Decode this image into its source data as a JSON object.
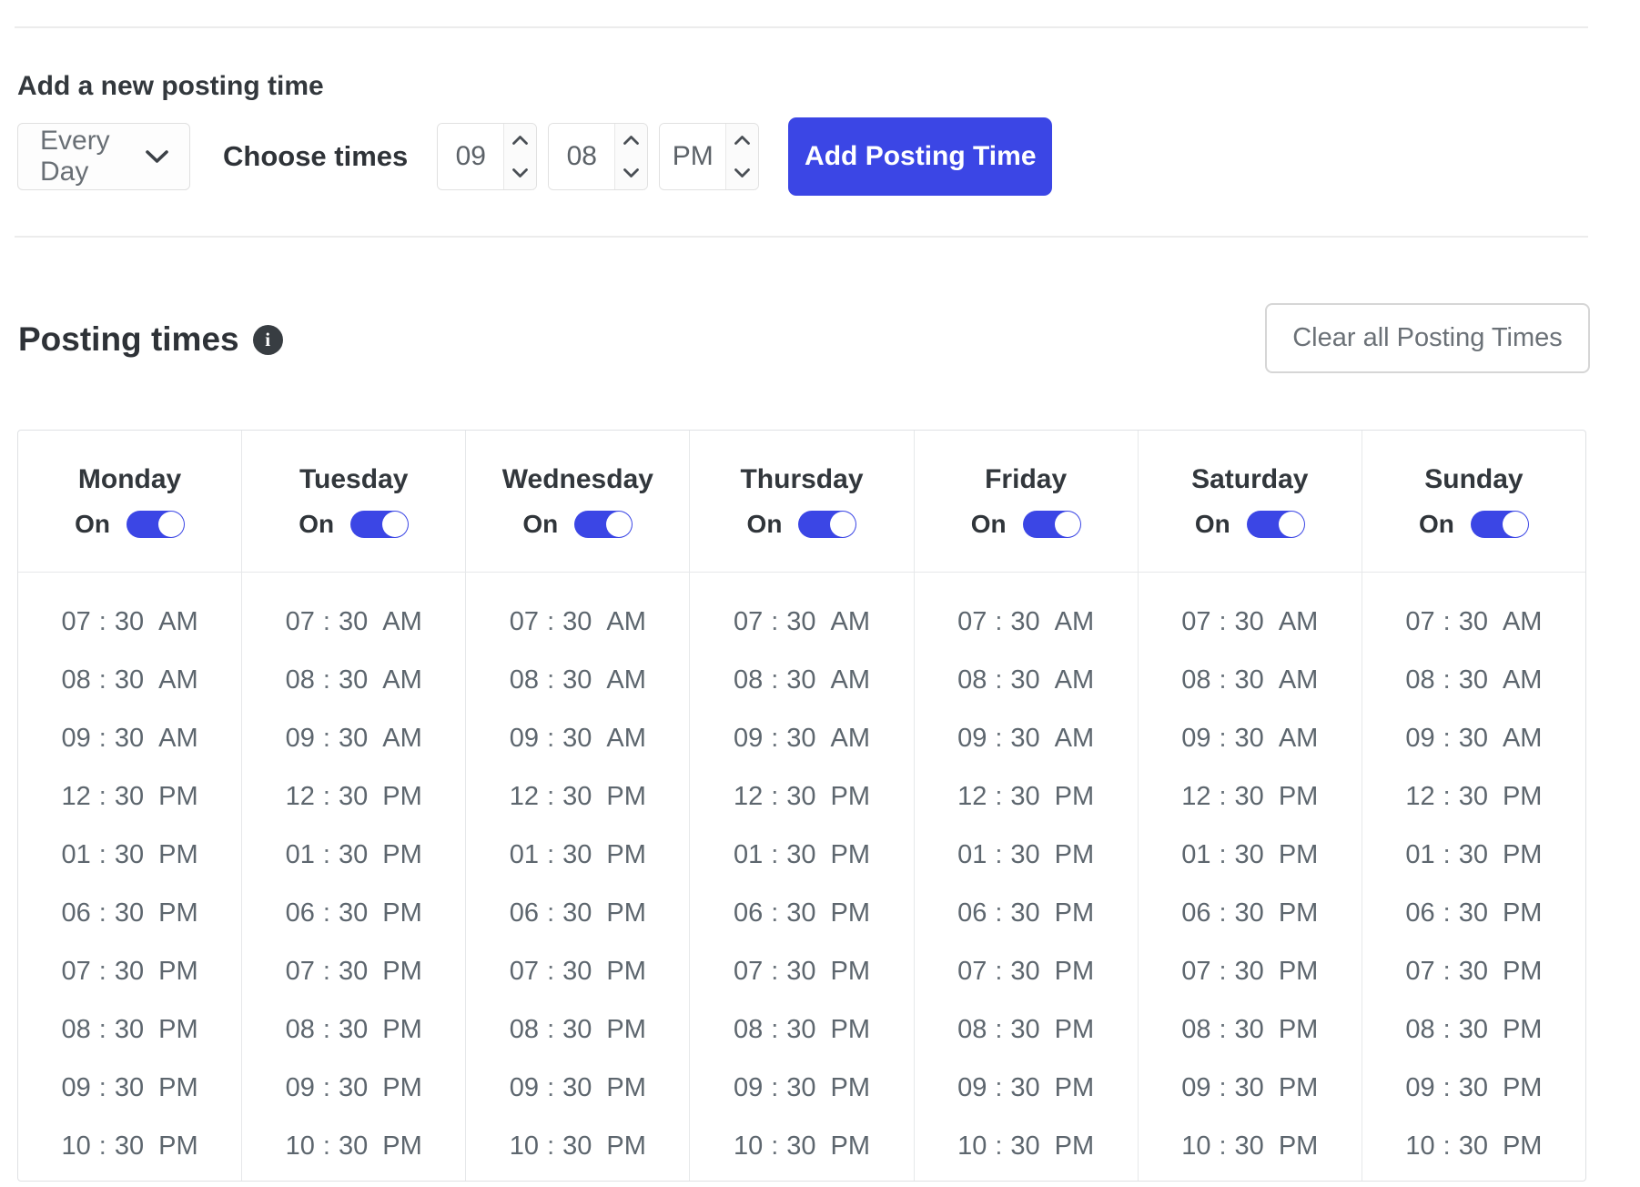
{
  "add_section": {
    "title": "Add a new posting time",
    "day_select": {
      "value": "Every Day"
    },
    "choose_times_label": "Choose times",
    "hour_input": {
      "value": "09"
    },
    "minute_input": {
      "value": "08"
    },
    "period_input": {
      "value": "PM"
    },
    "submit_label": "Add Posting Time"
  },
  "posting_times": {
    "title": "Posting times",
    "info_icon_glyph": "i",
    "clear_button_label": "Clear all Posting Times"
  },
  "schedule": {
    "toggle_label": "On",
    "days": [
      {
        "label": "Monday",
        "enabled": true,
        "times": [
          "07:30 AM",
          "08:30 AM",
          "09:30 AM",
          "12:30 PM",
          "01:30 PM",
          "06:30 PM",
          "07:30 PM",
          "08:30 PM",
          "09:30 PM",
          "10:30 PM"
        ]
      },
      {
        "label": "Tuesday",
        "enabled": true,
        "times": [
          "07:30 AM",
          "08:30 AM",
          "09:30 AM",
          "12:30 PM",
          "01:30 PM",
          "06:30 PM",
          "07:30 PM",
          "08:30 PM",
          "09:30 PM",
          "10:30 PM"
        ]
      },
      {
        "label": "Wednesday",
        "enabled": true,
        "times": [
          "07:30 AM",
          "08:30 AM",
          "09:30 AM",
          "12:30 PM",
          "01:30 PM",
          "06:30 PM",
          "07:30 PM",
          "08:30 PM",
          "09:30 PM",
          "10:30 PM"
        ]
      },
      {
        "label": "Thursday",
        "enabled": true,
        "times": [
          "07:30 AM",
          "08:30 AM",
          "09:30 AM",
          "12:30 PM",
          "01:30 PM",
          "06:30 PM",
          "07:30 PM",
          "08:30 PM",
          "09:30 PM",
          "10:30 PM"
        ]
      },
      {
        "label": "Friday",
        "enabled": true,
        "times": [
          "07:30 AM",
          "08:30 AM",
          "09:30 AM",
          "12:30 PM",
          "01:30 PM",
          "06:30 PM",
          "07:30 PM",
          "08:30 PM",
          "09:30 PM",
          "10:30 PM"
        ]
      },
      {
        "label": "Saturday",
        "enabled": true,
        "times": [
          "07:30 AM",
          "08:30 AM",
          "09:30 AM",
          "12:30 PM",
          "01:30 PM",
          "06:30 PM",
          "07:30 PM",
          "08:30 PM",
          "09:30 PM",
          "10:30 PM"
        ]
      },
      {
        "label": "Sunday",
        "enabled": true,
        "times": [
          "07:30 AM",
          "08:30 AM",
          "09:30 AM",
          "12:30 PM",
          "01:30 PM",
          "06:30 PM",
          "07:30 PM",
          "08:30 PM",
          "09:30 PM",
          "10:30 PM"
        ]
      }
    ]
  },
  "colors": {
    "accent": "#3B46E5"
  }
}
